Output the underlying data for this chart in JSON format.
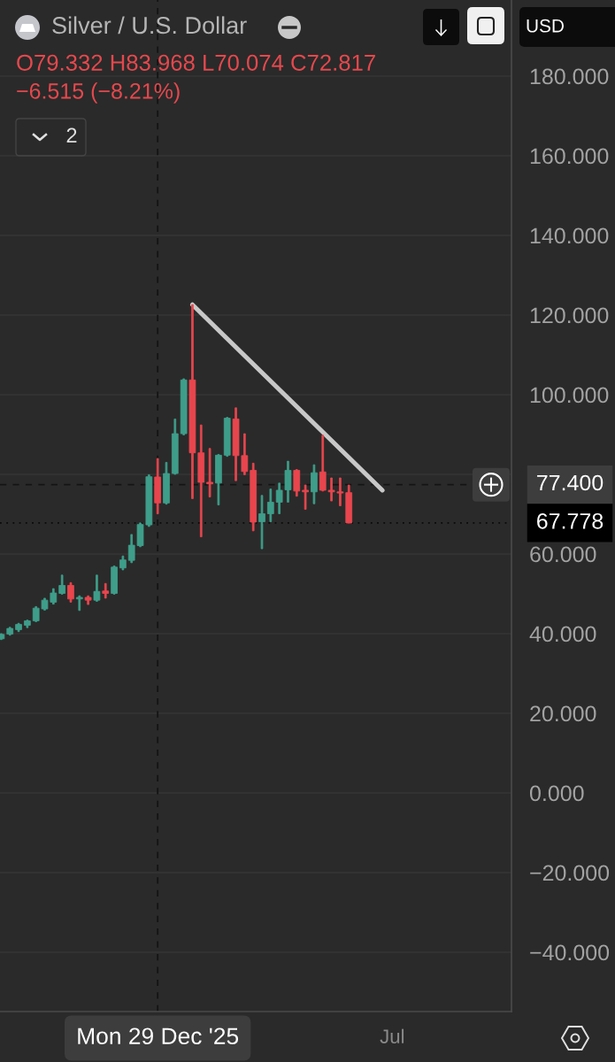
{
  "chart_data": {
    "type": "candlestick",
    "title": "Silver / U.S. Dollar",
    "annotations": [
      "O79.332 H83.968 L70.074 C72.817",
      "−6.515 (−8.21%)",
      "2",
      "USD"
    ],
    "x": [
      "2025-08-25",
      "2025-09-01",
      "2025-09-08",
      "2025-09-15",
      "2025-09-22",
      "2025-09-29",
      "2025-10-06",
      "2025-10-13",
      "2025-10-20",
      "2025-10-27",
      "2025-11-03",
      "2025-11-10",
      "2025-11-17",
      "2025-11-24",
      "2025-12-01",
      "2025-12-08",
      "2025-12-15",
      "2025-12-22",
      "2025-12-29",
      "2026-01-05",
      "2026-01-12",
      "2026-01-19",
      "2026-01-26",
      "2026-02-02",
      "2026-02-09",
      "2026-02-16",
      "2026-02-23",
      "2026-03-02",
      "2026-03-09",
      "2026-03-16",
      "2026-03-23",
      "2026-03-30",
      "2026-04-06",
      "2026-04-13",
      "2026-04-20",
      "2026-04-27",
      "2026-05-04",
      "2026-05-11",
      "2026-05-18",
      "2026-05-25",
      "2026-06-01"
    ],
    "ohlc": [
      [
        38.7,
        40.0,
        38.5,
        39.8
      ],
      [
        39.9,
        41.6,
        39.6,
        41.3
      ],
      [
        41.0,
        42.6,
        40.5,
        42.3
      ],
      [
        42.1,
        43.4,
        41.5,
        43.2
      ],
      [
        43.2,
        46.8,
        43.0,
        46.4
      ],
      [
        46.2,
        48.9,
        45.9,
        48.4
      ],
      [
        47.9,
        51.3,
        47.4,
        50.2
      ],
      [
        50.1,
        54.7,
        49.9,
        52.1
      ],
      [
        52.1,
        52.8,
        47.9,
        48.7
      ],
      [
        48.7,
        49.5,
        45.8,
        49.1
      ],
      [
        49.1,
        49.5,
        47.3,
        48.4
      ],
      [
        48.4,
        54.7,
        48.1,
        50.6
      ],
      [
        50.7,
        52.6,
        48.9,
        50.1
      ],
      [
        50.1,
        57.0,
        49.9,
        56.7
      ],
      [
        56.5,
        59.5,
        56.0,
        58.5
      ],
      [
        58.4,
        64.9,
        57.8,
        62.2
      ],
      [
        62.1,
        67.8,
        61.8,
        67.4
      ],
      [
        67.3,
        79.9,
        66.9,
        79.4
      ],
      [
        79.332,
        83.968,
        70.074,
        72.817
      ],
      [
        72.8,
        83.0,
        72.5,
        80.2
      ],
      [
        80.2,
        93.9,
        80.0,
        90.2
      ],
      [
        90.2,
        104.0,
        89.9,
        103.7
      ],
      [
        103.7,
        122.6,
        73.9,
        85.4
      ],
      [
        85.4,
        92.4,
        64.3,
        78.0
      ],
      [
        78.0,
        86.5,
        74.3,
        77.6
      ],
      [
        77.8,
        85.0,
        72.3,
        84.8
      ],
      [
        84.8,
        94.3,
        84.5,
        94.1
      ],
      [
        93.9,
        96.7,
        78.4,
        84.7
      ],
      [
        84.7,
        90.2,
        79.9,
        80.7
      ],
      [
        81.0,
        82.8,
        65.8,
        68.0
      ],
      [
        68.1,
        74.7,
        61.3,
        70.1
      ],
      [
        70.1,
        76.3,
        68.1,
        73.0
      ],
      [
        73.0,
        77.8,
        70.1,
        76.0
      ],
      [
        76.1,
        83.3,
        73.0,
        81.0
      ],
      [
        81.0,
        81.2,
        74.5,
        75.8
      ],
      [
        76.0,
        77.3,
        71.2,
        75.6
      ],
      [
        75.6,
        82.4,
        72.6,
        80.4
      ],
      [
        80.6,
        89.8,
        75.8,
        76.0
      ],
      [
        76.0,
        79.1,
        73.3,
        75.6
      ],
      [
        75.6,
        79.1,
        72.1,
        75.3
      ],
      [
        75.4,
        77.3,
        67.778,
        67.778
      ]
    ],
    "colors": [
      "#3f9e8a",
      "#3f9e8a",
      "#3f9e8a",
      "#3f9e8a",
      "#3f9e8a",
      "#3f9e8a",
      "#3f9e8a",
      "#3f9e8a",
      "#e8464e",
      "#3f9e8a",
      "#e8464e",
      "#3f9e8a",
      "#e8464e",
      "#3f9e8a",
      "#3f9e8a",
      "#3f9e8a",
      "#3f9e8a",
      "#3f9e8a",
      "#e8464e",
      "#3f9e8a",
      "#3f9e8a",
      "#3f9e8a",
      "#e8464e",
      "#e8464e",
      "#e8464e",
      "#3f9e8a",
      "#3f9e8a",
      "#e8464e",
      "#e8464e",
      "#e8464e",
      "#3f9e8a",
      "#3f9e8a",
      "#3f9e8a",
      "#3f9e8a",
      "#e8464e",
      "#e8464e",
      "#3f9e8a",
      "#e8464e",
      "#e8464e",
      "#e8464e",
      "#e8464e"
    ],
    "series": [
      {
        "type": "line",
        "x": [
          "2026-01-26",
          "2026-06-28"
        ],
        "values": [
          122.6,
          76.0
        ],
        "color": "#c8c8c8"
      }
    ],
    "xlim": [
      "2025-08-24",
      "2026-10-10"
    ],
    "xticks": [
      {
        "value": "2025-12-29",
        "label": "Mon 29 Dec '25"
      },
      {
        "value": "2026-07-06",
        "label": "Jul"
      }
    ],
    "ylim": [
      -54.9,
      199.1
    ],
    "yticks": [
      {
        "value": -40,
        "label": "−40.000"
      },
      {
        "value": -20,
        "label": "−20.000"
      },
      {
        "value": 0,
        "label": "0.000"
      },
      {
        "value": 20,
        "label": "20.000"
      },
      {
        "value": 40,
        "label": "40.000"
      },
      {
        "value": 60,
        "label": "60.000"
      },
      {
        "value": 80,
        "label": null
      },
      {
        "value": 100,
        "label": "100.000"
      },
      {
        "value": 120,
        "label": "120.000"
      },
      {
        "value": 140,
        "label": "140.000"
      },
      {
        "value": 160,
        "label": "160.000"
      },
      {
        "value": 180,
        "label": "180.000"
      }
    ],
    "ref_lines": [
      {
        "axis": "x",
        "value": "2025-12-29",
        "color": "#141414",
        "line_style": "dashed"
      },
      {
        "axis": "y",
        "value": 77.4,
        "label": "77.400",
        "color": "#141414",
        "line_style": "dashed"
      },
      {
        "axis": "y",
        "value": 67.778,
        "label": "67.778",
        "color": "#0a0a0a",
        "line_style": "dotted"
      }
    ],
    "grid": "y"
  }
}
